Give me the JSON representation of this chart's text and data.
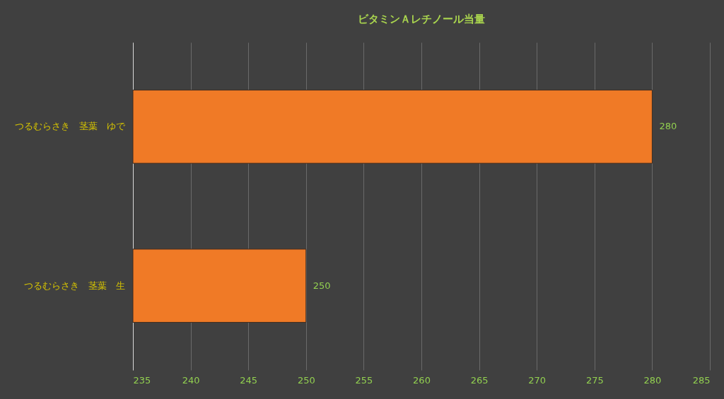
{
  "chart_data": {
    "type": "bar",
    "orientation": "horizontal",
    "title": "ビタミンＡレチノール当量",
    "categories": [
      "つるむらさき　茎葉　ゆで",
      "つるむらさき　茎葉　生"
    ],
    "values": [
      280,
      250
    ],
    "color": "#f07a26",
    "xlim": [
      235,
      285
    ],
    "xticks": [
      235,
      240,
      245,
      250,
      255,
      260,
      265,
      270,
      275,
      280,
      285
    ],
    "grid": "x",
    "data_labels": true
  }
}
